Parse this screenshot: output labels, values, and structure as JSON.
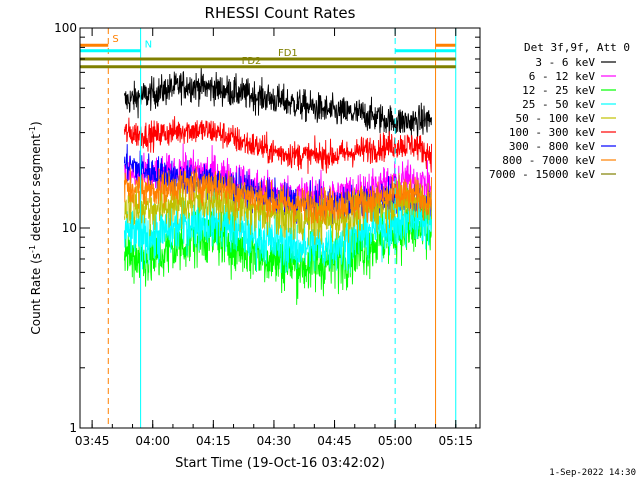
{
  "chart_data": {
    "type": "line",
    "title": "RHESSI Count Rates",
    "xlabel": "Start Time (19-Oct-16 03:42:02)",
    "ylabel": "Count Rate (s⁻¹ detector segment⁻¹)",
    "y_scale": "log",
    "ylim": [
      1,
      100
    ],
    "y_ticks": [
      {
        "value": 1,
        "label": "1"
      },
      {
        "value": 10,
        "label": "10"
      },
      {
        "value": 100,
        "label": "100"
      }
    ],
    "xlim": [
      "03:42",
      "05:21"
    ],
    "x_ticks": [
      {
        "value": "03:45",
        "label": "03:45"
      },
      {
        "value": "04:00",
        "label": "04:00"
      },
      {
        "value": "04:15",
        "label": "04:15"
      },
      {
        "value": "04:30",
        "label": "04:30"
      },
      {
        "value": "04:45",
        "label": "04:45"
      },
      {
        "value": "05:00",
        "label": "05:00"
      },
      {
        "value": "05:15",
        "label": "05:15"
      }
    ],
    "legend_title": "Det 3f,9f, Att 0",
    "legend_position": "right",
    "series": [
      {
        "name": "3 - 6 keV",
        "color": "#000000",
        "start": "03:53",
        "end": "05:09",
        "points": [
          [
            "03:53",
            43
          ],
          [
            "04:00",
            47
          ],
          [
            "04:08",
            52
          ],
          [
            "04:15",
            50
          ],
          [
            "04:22",
            47
          ],
          [
            "04:30",
            44
          ],
          [
            "04:37",
            41
          ],
          [
            "04:45",
            38
          ],
          [
            "04:52",
            37
          ],
          [
            "05:00",
            34
          ],
          [
            "05:05",
            34
          ],
          [
            "05:09",
            35
          ]
        ]
      },
      {
        "name": "6 - 12 keV",
        "color": "#ff00ff",
        "start": "03:53",
        "end": "05:09",
        "points": [
          [
            "03:53",
            18.5
          ],
          [
            "04:00",
            18
          ],
          [
            "04:08",
            19.5
          ],
          [
            "04:15",
            19
          ],
          [
            "04:22",
            17
          ],
          [
            "04:30",
            15
          ],
          [
            "04:37",
            14.5
          ],
          [
            "04:45",
            14.5
          ],
          [
            "04:52",
            15.5
          ],
          [
            "05:00",
            17
          ],
          [
            "05:05",
            17.5
          ],
          [
            "05:09",
            16
          ]
        ]
      },
      {
        "name": "12 - 25 keV",
        "color": "#00ff00",
        "start": "03:53",
        "end": "05:09",
        "points": [
          [
            "03:53",
            7.5
          ],
          [
            "04:00",
            7
          ],
          [
            "04:08",
            8.5
          ],
          [
            "04:15",
            9.5
          ],
          [
            "04:22",
            8
          ],
          [
            "04:30",
            7
          ],
          [
            "04:37",
            6.5
          ],
          [
            "04:45",
            6.8
          ],
          [
            "04:52",
            8
          ],
          [
            "05:00",
            9.5
          ],
          [
            "05:05",
            10
          ],
          [
            "05:09",
            9
          ]
        ]
      },
      {
        "name": "25 - 50 keV",
        "color": "#00ffff",
        "start": "03:53",
        "end": "05:09",
        "points": [
          [
            "03:53",
            9.5
          ],
          [
            "04:00",
            9
          ],
          [
            "04:08",
            10.5
          ],
          [
            "04:15",
            11
          ],
          [
            "04:22",
            9.5
          ],
          [
            "04:30",
            8.5
          ],
          [
            "04:37",
            8
          ],
          [
            "04:45",
            8.2
          ],
          [
            "04:52",
            9.5
          ],
          [
            "05:00",
            10.5
          ],
          [
            "05:05",
            11
          ],
          [
            "05:09",
            10.5
          ]
        ]
      },
      {
        "name": "50 - 100 keV",
        "color": "#c0c000",
        "start": "03:53",
        "end": "05:09",
        "points": [
          [
            "03:53",
            13
          ],
          [
            "04:00",
            12.5
          ],
          [
            "04:08",
            13.5
          ],
          [
            "04:15",
            14
          ],
          [
            "04:22",
            12.5
          ],
          [
            "04:30",
            11.5
          ],
          [
            "04:37",
            11
          ],
          [
            "04:45",
            11
          ],
          [
            "04:52",
            12
          ],
          [
            "05:00",
            13.5
          ],
          [
            "05:05",
            14
          ],
          [
            "05:09",
            13
          ]
        ]
      },
      {
        "name": "100 - 300 keV",
        "color": "#ff0000",
        "start": "03:53",
        "end": "05:09",
        "points": [
          [
            "03:53",
            30
          ],
          [
            "04:00",
            29
          ],
          [
            "04:08",
            31
          ],
          [
            "04:15",
            30.5
          ],
          [
            "04:22",
            27
          ],
          [
            "04:30",
            24
          ],
          [
            "04:37",
            23
          ],
          [
            "04:45",
            23
          ],
          [
            "04:52",
            24.5
          ],
          [
            "05:00",
            26
          ],
          [
            "05:05",
            26
          ],
          [
            "05:09",
            23
          ]
        ]
      },
      {
        "name": "300 - 800 keV",
        "color": "#0000ff",
        "start": "03:53",
        "end": "05:09",
        "points": [
          [
            "03:53",
            21
          ],
          [
            "04:00",
            19
          ],
          [
            "04:08",
            17.5
          ],
          [
            "04:15",
            17
          ],
          [
            "04:22",
            15.5
          ],
          [
            "04:30",
            14
          ],
          [
            "04:37",
            13
          ],
          [
            "04:45",
            13
          ],
          [
            "04:52",
            13.5
          ],
          [
            "05:00",
            14
          ],
          [
            "05:05",
            14
          ],
          [
            "05:09",
            13
          ]
        ]
      },
      {
        "name": "800 - 7000 keV",
        "color": "#ff8000",
        "start": "03:53",
        "end": "05:09",
        "points": [
          [
            "03:53",
            16
          ],
          [
            "04:00",
            15.5
          ],
          [
            "04:08",
            16.5
          ],
          [
            "04:15",
            16.5
          ],
          [
            "04:22",
            15
          ],
          [
            "04:30",
            13.5
          ],
          [
            "04:37",
            13
          ],
          [
            "04:45",
            13
          ],
          [
            "04:52",
            13.5
          ],
          [
            "05:00",
            14.5
          ],
          [
            "05:05",
            14.5
          ],
          [
            "05:09",
            13.5
          ]
        ]
      },
      {
        "name": "7000 - 15000 keV",
        "color": "#808000",
        "start": "03:53",
        "end": "05:09",
        "points": []
      }
    ],
    "markers": [
      {
        "name": "S",
        "color": "#ff8000",
        "line_at": [
          "03:49",
          "05:10"
        ],
        "bars": [
          [
            "03:42",
            "03:49"
          ],
          [
            "05:10",
            "05:15"
          ]
        ],
        "level": 82,
        "label_at": "03:50"
      },
      {
        "name": "N",
        "color": "#00ffff",
        "line_at": [
          "03:42",
          "03:57",
          "05:00",
          "05:15"
        ],
        "bars": [
          [
            "03:42",
            "03:57"
          ],
          [
            "05:00",
            "05:15"
          ]
        ],
        "level": 77,
        "label_at": "03:58"
      },
      {
        "name": "FD1",
        "color": "#808000",
        "bars": [
          [
            "03:42",
            "05:15"
          ]
        ],
        "level": 70,
        "label_at": "04:31"
      },
      {
        "name": "FD2",
        "color": "#808000",
        "bars": [
          [
            "03:42",
            "05:15"
          ]
        ],
        "level": 64,
        "label_at": "04:22"
      }
    ],
    "grid": false
  },
  "footer": {
    "timestamp": "1-Sep-2022 14:30"
  }
}
